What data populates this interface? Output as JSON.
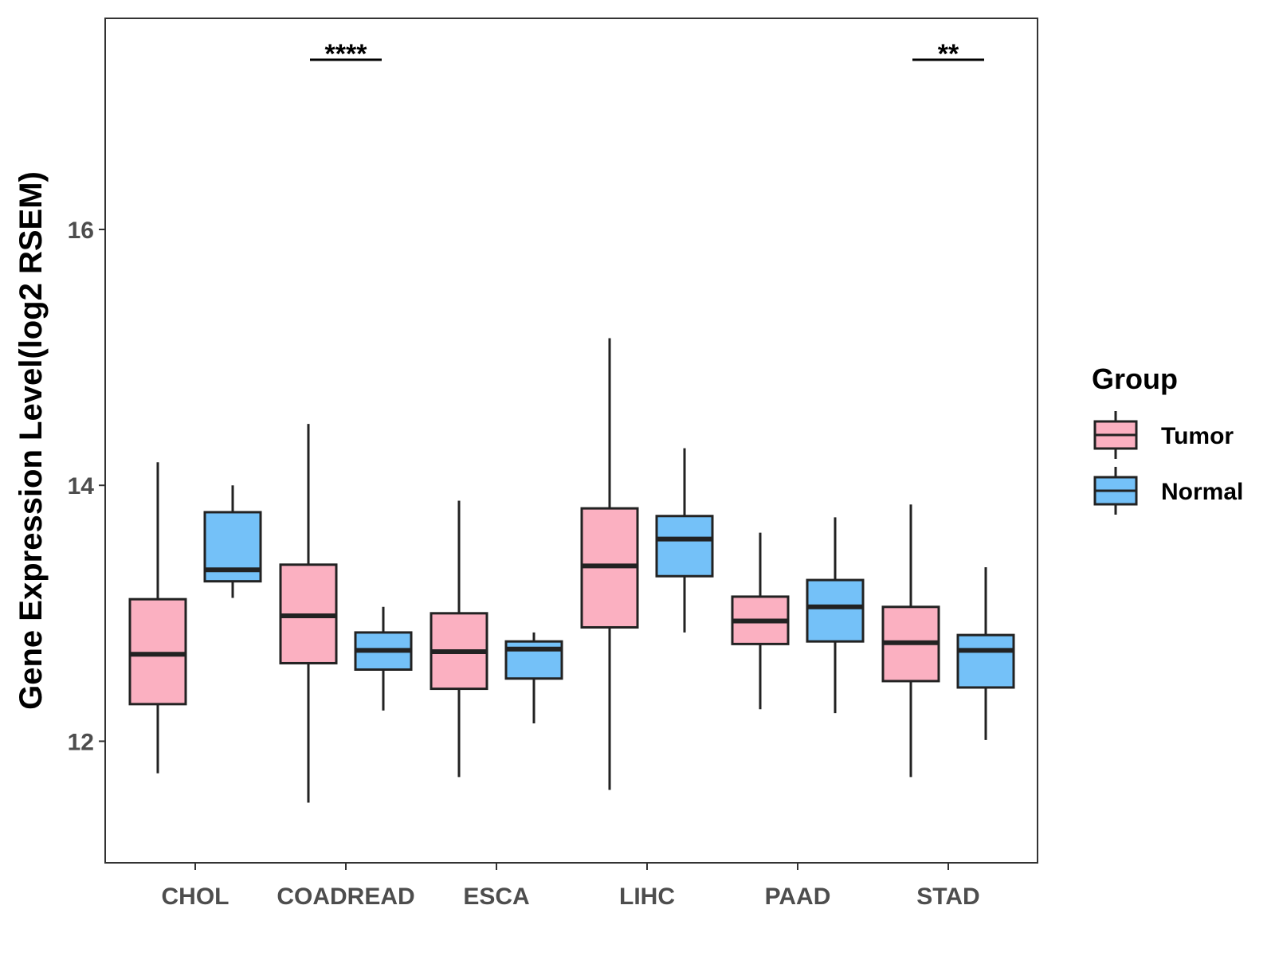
{
  "chart_data": {
    "type": "boxplot",
    "title": "",
    "xlabel": "",
    "ylabel": "Gene Expression Level(log2 RSEM)",
    "ylim": [
      11.05,
      17.65
    ],
    "yticks": [
      12,
      14,
      16
    ],
    "categories": [
      "CHOL",
      "COADREAD",
      "ESCA",
      "LIHC",
      "PAAD",
      "STAD"
    ],
    "legend": {
      "title": "Group",
      "position": "right",
      "entries": [
        {
          "name": "Tumor",
          "color": "#FBB0C1"
        },
        {
          "name": "Normal",
          "color": "#74C1F8"
        }
      ]
    },
    "series": [
      {
        "name": "Tumor",
        "color": "#FBB0C1",
        "boxes": [
          {
            "category": "CHOL",
            "min": 11.75,
            "q1": 12.29,
            "median": 12.68,
            "q3": 13.11,
            "max": 14.18
          },
          {
            "category": "COADREAD",
            "min": 11.52,
            "q1": 12.61,
            "median": 12.98,
            "q3": 13.38,
            "max": 14.48
          },
          {
            "category": "ESCA",
            "min": 11.72,
            "q1": 12.41,
            "median": 12.7,
            "q3": 13.0,
            "max": 13.88
          },
          {
            "category": "LIHC",
            "min": 11.62,
            "q1": 12.89,
            "median": 13.37,
            "q3": 13.82,
            "max": 15.15
          },
          {
            "category": "PAAD",
            "min": 12.25,
            "q1": 12.76,
            "median": 12.94,
            "q3": 13.13,
            "max": 13.63
          },
          {
            "category": "STAD",
            "min": 11.72,
            "q1": 12.47,
            "median": 12.77,
            "q3": 13.05,
            "max": 13.85
          }
        ]
      },
      {
        "name": "Normal",
        "color": "#74C1F8",
        "boxes": [
          {
            "category": "CHOL",
            "min": 13.12,
            "q1": 13.25,
            "median": 13.34,
            "q3": 13.79,
            "max": 14.0
          },
          {
            "category": "COADREAD",
            "min": 12.24,
            "q1": 12.56,
            "median": 12.71,
            "q3": 12.85,
            "max": 13.05
          },
          {
            "category": "ESCA",
            "min": 12.14,
            "q1": 12.49,
            "median": 12.72,
            "q3": 12.78,
            "max": 12.85
          },
          {
            "category": "LIHC",
            "min": 12.85,
            "q1": 13.29,
            "median": 13.58,
            "q3": 13.76,
            "max": 14.29
          },
          {
            "category": "PAAD",
            "min": 12.22,
            "q1": 12.78,
            "median": 13.05,
            "q3": 13.26,
            "max": 13.75
          },
          {
            "category": "STAD",
            "min": 12.01,
            "q1": 12.42,
            "median": 12.71,
            "q3": 12.83,
            "max": 13.36
          }
        ]
      }
    ],
    "significance": [
      {
        "category": "COADREAD",
        "label": "****"
      },
      {
        "category": "STAD",
        "label": "**"
      }
    ]
  }
}
